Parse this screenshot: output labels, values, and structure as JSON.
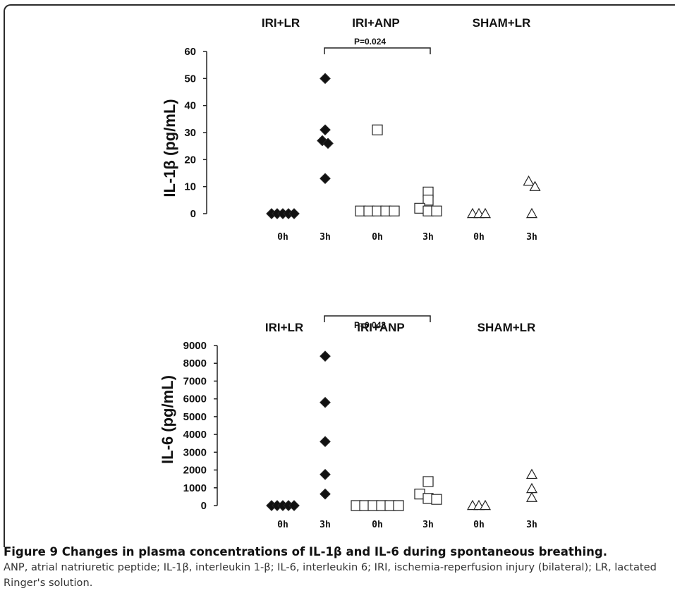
{
  "chart_data": [
    {
      "type": "scatter",
      "ylabel": "IL-1β (pg/mL)",
      "ylim": [
        0,
        60
      ],
      "yticks": [
        "0",
        "10",
        "20",
        "30",
        "40",
        "50",
        "60"
      ],
      "groups": [
        "IRI+LR",
        "IRI+ANP",
        "SHAM+LR"
      ],
      "categories": [
        "0h",
        "3h",
        "0h",
        "3h",
        "0h",
        "3h"
      ],
      "significance": {
        "label": "P=0.024",
        "from": 1,
        "to": 3
      },
      "series": [
        {
          "group": "IRI+LR",
          "time": "0h",
          "marker": "diamond-filled",
          "values": [
            0,
            0,
            0,
            0,
            0
          ]
        },
        {
          "group": "IRI+LR",
          "time": "3h",
          "marker": "diamond-filled",
          "values": [
            50,
            31,
            27,
            26,
            13
          ]
        },
        {
          "group": "IRI+ANP",
          "time": "0h",
          "marker": "square-open",
          "values": [
            31,
            1,
            1,
            1,
            1,
            1
          ]
        },
        {
          "group": "IRI+ANP",
          "time": "3h",
          "marker": "square-open",
          "values": [
            8,
            5,
            2,
            1,
            1
          ]
        },
        {
          "group": "SHAM+LR",
          "time": "0h",
          "marker": "triangle-open",
          "values": [
            0,
            0,
            0
          ]
        },
        {
          "group": "SHAM+LR",
          "time": "3h",
          "marker": "triangle-open",
          "values": [
            12,
            10,
            0
          ]
        }
      ]
    },
    {
      "type": "scatter",
      "ylabel": "IL-6 (pg/mL)",
      "ylim": [
        0,
        9000
      ],
      "yticks": [
        "0",
        "1000",
        "2000",
        "3000",
        "4000",
        "5000",
        "6000",
        "7000",
        "8000",
        "9000"
      ],
      "groups": [
        "IRI+LR",
        "IRI+ANP",
        "SHAM+LR"
      ],
      "categories": [
        "0h",
        "3h",
        "0h",
        "3h",
        "0h",
        "3h"
      ],
      "significance": {
        "label": "P=0.043",
        "from": 1,
        "to": 3
      },
      "series": [
        {
          "group": "IRI+LR",
          "time": "0h",
          "marker": "diamond-filled",
          "values": [
            0,
            0,
            0,
            0,
            0
          ]
        },
        {
          "group": "IRI+LR",
          "time": "3h",
          "marker": "diamond-filled",
          "values": [
            8400,
            5800,
            3600,
            1750,
            650
          ]
        },
        {
          "group": "IRI+ANP",
          "time": "0h",
          "marker": "square-open",
          "values": [
            0,
            0,
            0,
            0,
            0,
            0
          ]
        },
        {
          "group": "IRI+ANP",
          "time": "3h",
          "marker": "square-open",
          "values": [
            1350,
            650,
            400,
            350
          ]
        },
        {
          "group": "SHAM+LR",
          "time": "0h",
          "marker": "triangle-open",
          "values": [
            0,
            0,
            0
          ]
        },
        {
          "group": "SHAM+LR",
          "time": "3h",
          "marker": "triangle-open",
          "values": [
            1750,
            950,
            450
          ]
        }
      ]
    }
  ],
  "caption": {
    "title": "Figure 9 Changes in plasma concentrations of IL-1β and IL-6 during spontaneous breathing.",
    "text": "ANP, atrial natriuretic peptide; IL-1β, interleukin 1-β; IL-6, interleukin 6; IRI, ischemia-reperfusion injury (bilateral); LR, lactated Ringer's solution."
  }
}
